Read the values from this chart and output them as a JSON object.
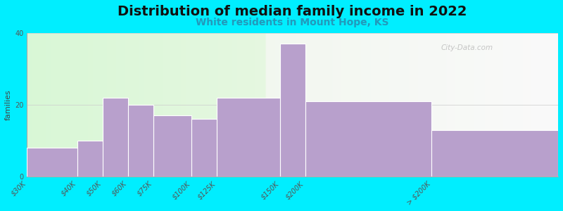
{
  "title": "Distribution of median family income in 2022",
  "subtitle": "White residents in Mount Hope, KS",
  "ylabel": "families",
  "categories": [
    "$30K",
    "$40K",
    "$50K",
    "$60K",
    "$75K",
    "$100K",
    "$125K",
    "$150K",
    "$200K",
    "> $200K"
  ],
  "values": [
    8,
    10,
    22,
    20,
    17,
    16,
    22,
    37,
    21,
    13
  ],
  "bar_color": "#b8a0cc",
  "edge_color": "#ffffff",
  "background_color": "#00eeff",
  "ylim": [
    0,
    40
  ],
  "yticks": [
    0,
    20,
    40
  ],
  "title_fontsize": 14,
  "subtitle_fontsize": 10,
  "ylabel_fontsize": 8,
  "tick_fontsize": 7,
  "watermark": "City-Data.com",
  "bar_widths": [
    2,
    1,
    1,
    1,
    1.5,
    1,
    2.5,
    1,
    5,
    5
  ],
  "bar_lefts": [
    0,
    2,
    3,
    4,
    5,
    6.5,
    7.5,
    10,
    11,
    16
  ]
}
